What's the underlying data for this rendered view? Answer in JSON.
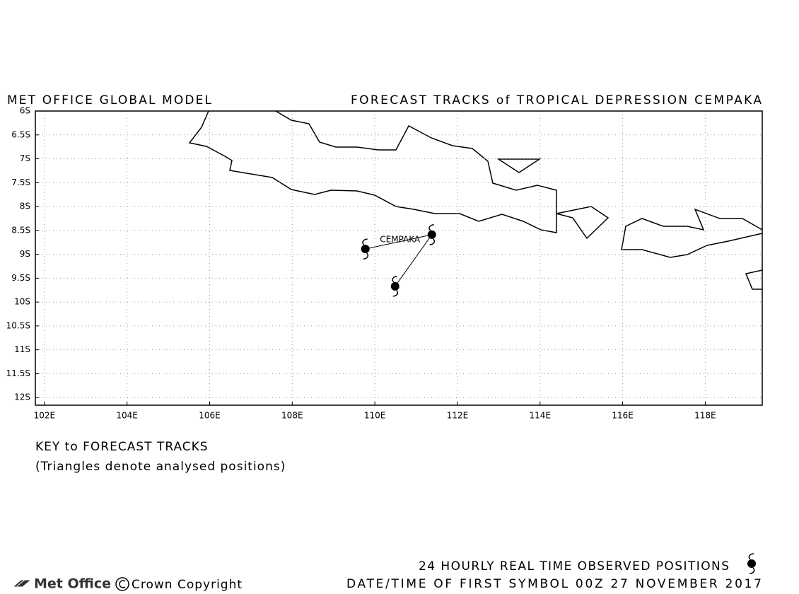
{
  "chart_data": {
    "type": "map",
    "title": "MET OFFICE GLOBAL MODEL",
    "subtitle": "FORECAST TRACKS of TROPICAL DEPRESSION CEMPAKA",
    "xlim": [
      101.78,
      119.38
    ],
    "ylim": [
      -12.16,
      -6
    ],
    "xticks": [
      {
        "value": 102,
        "label": "102E"
      },
      {
        "value": 104,
        "label": "104E"
      },
      {
        "value": 106,
        "label": "106E"
      },
      {
        "value": 108,
        "label": "108E"
      },
      {
        "value": 110,
        "label": "110E"
      },
      {
        "value": 112,
        "label": "112E"
      },
      {
        "value": 114,
        "label": "114E"
      },
      {
        "value": 116,
        "label": "116E"
      },
      {
        "value": 118,
        "label": "118E"
      }
    ],
    "yticks": [
      {
        "value": -6,
        "label": "6S"
      },
      {
        "value": -6.5,
        "label": "6.5S"
      },
      {
        "value": -7,
        "label": "7S"
      },
      {
        "value": -7.5,
        "label": "7.5S"
      },
      {
        "value": -8,
        "label": "8S"
      },
      {
        "value": -8.5,
        "label": "8.5S"
      },
      {
        "value": -9,
        "label": "9S"
      },
      {
        "value": -9.5,
        "label": "9.5S"
      },
      {
        "value": -10,
        "label": "10S"
      },
      {
        "value": -10.5,
        "label": "10.5S"
      },
      {
        "value": -11,
        "label": "11S"
      },
      {
        "value": -11.5,
        "label": "11.5S"
      },
      {
        "value": -12,
        "label": "12S"
      }
    ],
    "grid": true,
    "x": [
      109.77,
      111.38,
      110.49
    ],
    "series": [
      {
        "name": "CEMPAKA",
        "color": "#000000",
        "values": [
          -8.89,
          -8.59,
          -9.67
        ]
      }
    ],
    "key_title": "KEY to FORECAST TRACKS",
    "key_note": "(Triangles denote analysed positions)",
    "legend_text": "24 HOURLY REAL TIME OBSERVED POSITIONS",
    "date_text": "DATE/TIME OF FIRST SYMBOL 00Z 27 NOVEMBER 2017",
    "brand": "Met Office",
    "copyright": "Crown Copyright"
  }
}
